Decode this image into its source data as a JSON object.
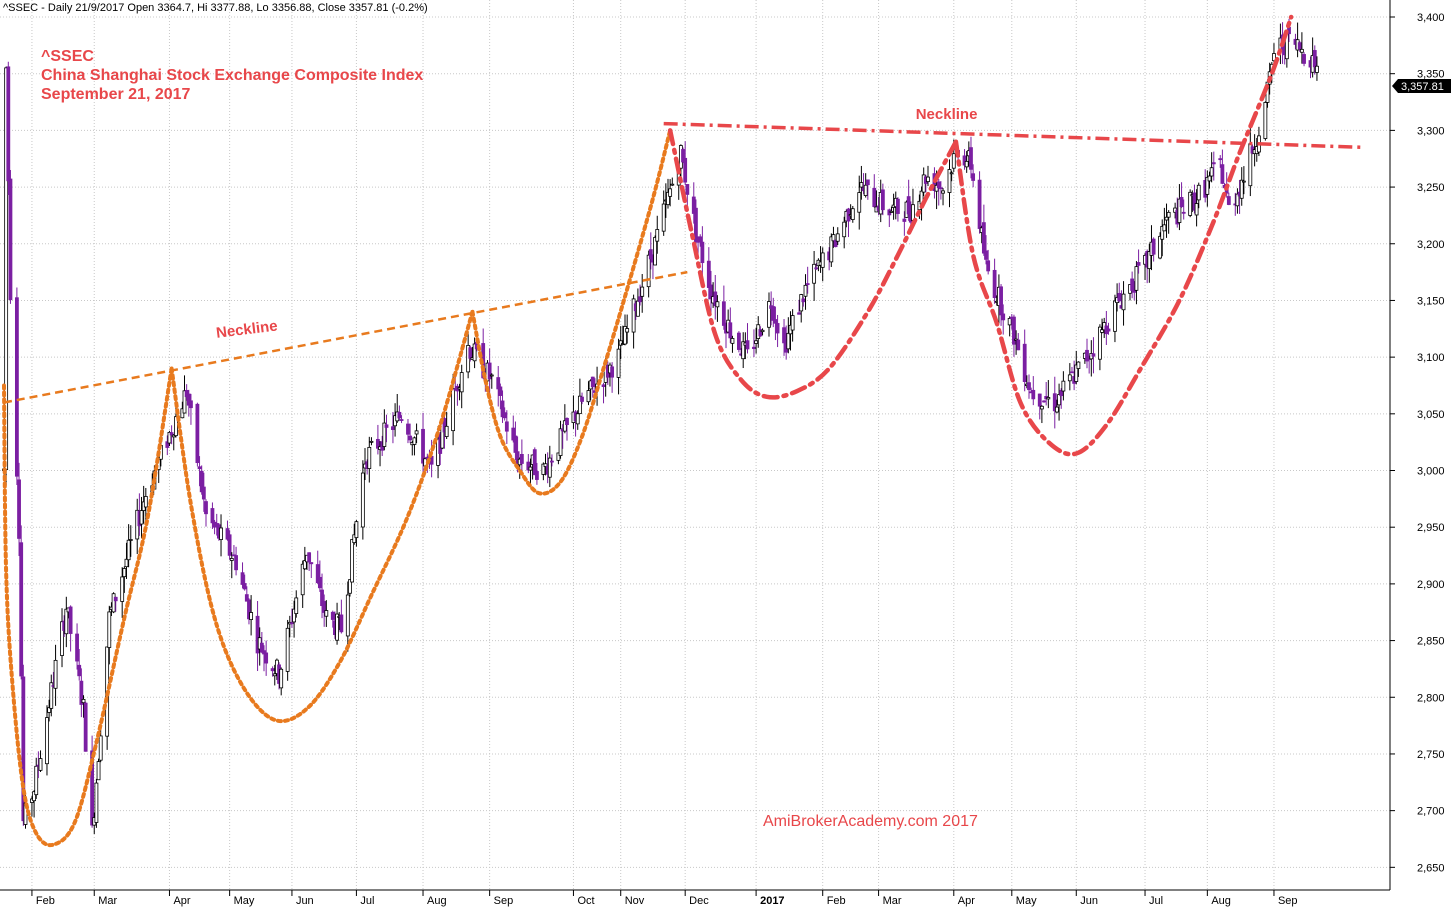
{
  "header": "^SSEC - Daily 21/9/2017 Open 3364.7, Hi 3377.88, Lo 3356.88, Close 3357.81 (-0.2%)",
  "title_lines": [
    "^SSEC",
    "China Shanghai Stock Exchange Composite Index",
    "September 21, 2017"
  ],
  "watermark": "AmiBrokerAcademy.com   2017",
  "last_price_label": "3,357.81",
  "colors": {
    "up": "#000000",
    "down": "#7b1fa2",
    "orange_pattern": "#e87a1e",
    "red_pattern": "#e8474a",
    "grid": "#c8c8c8",
    "price_box": "#000000"
  },
  "chart_data": {
    "type": "candlestick",
    "ylim": [
      2630,
      3415
    ],
    "y_ticks": [
      2650,
      2700,
      2750,
      2800,
      2850,
      2900,
      2950,
      3000,
      3050,
      3100,
      3150,
      3200,
      3250,
      3300,
      3350,
      3400
    ],
    "y_tick_labels": [
      "2,650",
      "2,700",
      "2,750",
      "2,800",
      "2,850",
      "2,900",
      "2,950",
      "3,000",
      "3,050",
      "3,100",
      "3,150",
      "3,200",
      "3,250",
      "3,300",
      "3,350",
      "3,400"
    ],
    "x_domain": [
      "2016-01-19",
      "2017-10-25"
    ],
    "x_ticks": [
      {
        "label": "Feb",
        "date": "2016-02-01"
      },
      {
        "label": "Mar",
        "date": "2016-03-01"
      },
      {
        "label": "Apr",
        "date": "2016-04-05"
      },
      {
        "label": "May",
        "date": "2016-05-03"
      },
      {
        "label": "Jun",
        "date": "2016-06-01"
      },
      {
        "label": "Jul",
        "date": "2016-07-01"
      },
      {
        "label": "Aug",
        "date": "2016-08-01"
      },
      {
        "label": "Sep",
        "date": "2016-09-01"
      },
      {
        "label": "Oct",
        "date": "2016-10-10"
      },
      {
        "label": "Nov",
        "date": "2016-11-01"
      },
      {
        "label": "Dec",
        "date": "2016-12-01"
      },
      {
        "label": "2017",
        "date": "2017-01-03",
        "bold": true
      },
      {
        "label": "Feb",
        "date": "2017-02-03"
      },
      {
        "label": "Mar",
        "date": "2017-03-01"
      },
      {
        "label": "Apr",
        "date": "2017-04-05"
      },
      {
        "label": "May",
        "date": "2017-05-02"
      },
      {
        "label": "Jun",
        "date": "2017-06-01"
      },
      {
        "label": "Jul",
        "date": "2017-07-03"
      },
      {
        "label": "Aug",
        "date": "2017-08-01"
      },
      {
        "label": "Sep",
        "date": "2017-09-01"
      }
    ],
    "price_anchors": [
      [
        "2016-01-19",
        3000
      ],
      [
        "2016-01-20",
        3355
      ],
      [
        "2016-01-22",
        3160
      ],
      [
        "2016-01-26",
        2950
      ],
      [
        "2016-01-28",
        2690
      ],
      [
        "2016-02-02",
        2720
      ],
      [
        "2016-02-17",
        2880
      ],
      [
        "2016-02-25",
        2790
      ],
      [
        "2016-02-29",
        2680
      ],
      [
        "2016-03-08",
        2870
      ],
      [
        "2016-03-25",
        2980
      ],
      [
        "2016-04-13",
        3070
      ],
      [
        "2016-04-22",
        2960
      ],
      [
        "2016-05-06",
        2920
      ],
      [
        "2016-05-16",
        2850
      ],
      [
        "2016-05-26",
        2820
      ],
      [
        "2016-06-08",
        2930
      ],
      [
        "2016-06-17",
        2870
      ],
      [
        "2016-06-24",
        2860
      ],
      [
        "2016-07-05",
        3010
      ],
      [
        "2016-07-22",
        3050
      ],
      [
        "2016-08-05",
        3000
      ],
      [
        "2016-08-22",
        3110
      ],
      [
        "2016-09-02",
        3080
      ],
      [
        "2016-09-14",
        3010
      ],
      [
        "2016-09-26",
        3000
      ],
      [
        "2016-10-14",
        3060
      ],
      [
        "2016-10-31",
        3100
      ],
      [
        "2016-11-17",
        3200
      ],
      [
        "2016-11-29",
        3280
      ],
      [
        "2016-12-06",
        3210
      ],
      [
        "2016-12-13",
        3160
      ],
      [
        "2016-12-23",
        3120
      ],
      [
        "2016-12-30",
        3100
      ],
      [
        "2017-01-10",
        3150
      ],
      [
        "2017-01-16",
        3110
      ],
      [
        "2017-01-26",
        3160
      ],
      [
        "2017-02-08",
        3200
      ],
      [
        "2017-02-20",
        3250
      ],
      [
        "2017-03-06",
        3230
      ],
      [
        "2017-03-16",
        3230
      ],
      [
        "2017-03-23",
        3260
      ],
      [
        "2017-03-31",
        3250
      ],
      [
        "2017-04-07",
        3285
      ],
      [
        "2017-04-13",
        3270
      ],
      [
        "2017-04-20",
        3180
      ],
      [
        "2017-05-03",
        3120
      ],
      [
        "2017-05-11",
        3070
      ],
      [
        "2017-05-22",
        3060
      ],
      [
        "2017-06-06",
        3100
      ],
      [
        "2017-06-21",
        3150
      ],
      [
        "2017-07-03",
        3180
      ],
      [
        "2017-07-13",
        3220
      ],
      [
        "2017-07-27",
        3240
      ],
      [
        "2017-08-07",
        3270
      ],
      [
        "2017-08-11",
        3230
      ],
      [
        "2017-08-18",
        3260
      ],
      [
        "2017-08-28",
        3320
      ],
      [
        "2017-09-01",
        3370
      ],
      [
        "2017-09-08",
        3380
      ],
      [
        "2017-09-15",
        3370
      ],
      [
        "2017-09-21",
        3358
      ]
    ],
    "orange_neckline": {
      "from": [
        "2016-01-19",
        3060
      ],
      "to": [
        "2016-12-02",
        3175
      ],
      "label": "Neckline",
      "label_at": [
        "2016-04-27",
        3117
      ]
    },
    "red_neckline": {
      "from": [
        "2016-11-21",
        3306
      ],
      "to": [
        "2017-10-13",
        3285
      ],
      "label": "Neckline",
      "label_at": [
        "2017-04-16",
        3310
      ]
    },
    "orange_cups": [
      [
        [
          "2016-01-19",
          3075
        ],
        [
          "2016-01-20",
          2910
        ],
        [
          "2016-01-23",
          2810
        ],
        [
          "2016-01-28",
          2720
        ],
        [
          "2016-02-03",
          2680
        ],
        [
          "2016-02-11",
          2670
        ],
        [
          "2016-02-21",
          2690
        ],
        [
          "2016-03-02",
          2760
        ],
        [
          "2016-03-15",
          2870
        ],
        [
          "2016-03-26",
          2960
        ],
        [
          "2016-04-06",
          3090
        ]
      ],
      [
        [
          "2016-04-06",
          3090
        ],
        [
          "2016-04-15",
          2970
        ],
        [
          "2016-04-26",
          2870
        ],
        [
          "2016-05-09",
          2810
        ],
        [
          "2016-05-24",
          2780
        ],
        [
          "2016-06-08",
          2790
        ],
        [
          "2016-06-23",
          2830
        ],
        [
          "2016-07-08",
          2890
        ],
        [
          "2016-07-25",
          2960
        ],
        [
          "2016-08-09",
          3040
        ],
        [
          "2016-08-24",
          3140
        ]
      ],
      [
        [
          "2016-08-24",
          3140
        ],
        [
          "2016-08-30",
          3080
        ],
        [
          "2016-09-06",
          3030
        ],
        [
          "2016-09-15",
          3000
        ],
        [
          "2016-09-24",
          2980
        ],
        [
          "2016-10-04",
          2990
        ],
        [
          "2016-10-14",
          3030
        ],
        [
          "2016-10-24",
          3090
        ],
        [
          "2016-11-04",
          3160
        ],
        [
          "2016-11-16",
          3240
        ],
        [
          "2016-11-24",
          3300
        ]
      ]
    ],
    "red_cups": [
      [
        [
          "2016-11-24",
          3300
        ],
        [
          "2016-12-04",
          3210
        ],
        [
          "2016-12-15",
          3120
        ],
        [
          "2016-12-27",
          3080
        ],
        [
          "2017-01-08",
          3065
        ],
        [
          "2017-01-22",
          3070
        ],
        [
          "2017-02-06",
          3090
        ],
        [
          "2017-02-24",
          3140
        ],
        [
          "2017-03-10",
          3190
        ],
        [
          "2017-03-23",
          3240
        ],
        [
          "2017-04-06",
          3290
        ]
      ],
      [
        [
          "2017-04-06",
          3290
        ],
        [
          "2017-04-14",
          3190
        ],
        [
          "2017-04-25",
          3130
        ],
        [
          "2017-05-06",
          3060
        ],
        [
          "2017-05-19",
          3025
        ],
        [
          "2017-06-01",
          3015
        ],
        [
          "2017-06-15",
          3040
        ],
        [
          "2017-07-01",
          3090
        ],
        [
          "2017-07-19",
          3150
        ],
        [
          "2017-08-04",
          3220
        ],
        [
          "2017-08-16",
          3280
        ],
        [
          "2017-08-31",
          3350
        ],
        [
          "2017-09-09",
          3400
        ]
      ]
    ]
  }
}
